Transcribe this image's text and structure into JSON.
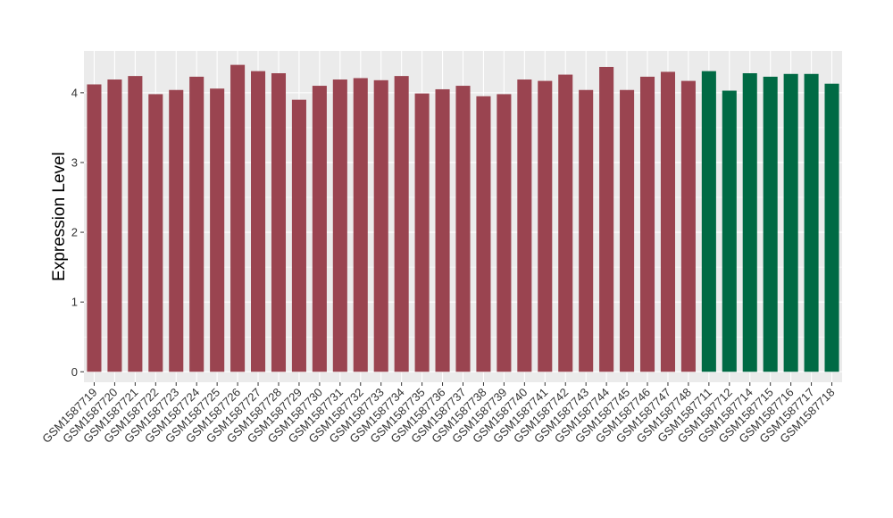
{
  "chart_data": {
    "type": "bar",
    "title": "",
    "xlabel": "",
    "ylabel": "Expression Level",
    "ylim": [
      -0.15,
      4.6
    ],
    "yticks": [
      0,
      1,
      2,
      3,
      4
    ],
    "grid": true,
    "legend": "none",
    "background": "#ebebeb",
    "gridline_color": "#ffffff",
    "group_colors": [
      "#9a4450",
      "#006a44"
    ],
    "categories": [
      "GSM1587719",
      "GSM1587720",
      "GSM1587721",
      "GSM1587722",
      "GSM1587723",
      "GSM1587724",
      "GSM1587725",
      "GSM1587726",
      "GSM1587727",
      "GSM1587728",
      "GSM1587729",
      "GSM1587730",
      "GSM1587731",
      "GSM1587732",
      "GSM1587733",
      "GSM1587734",
      "GSM1587735",
      "GSM1587736",
      "GSM1587737",
      "GSM1587738",
      "GSM1587739",
      "GSM1587740",
      "GSM1587741",
      "GSM1587742",
      "GSM1587743",
      "GSM1587744",
      "GSM1587745",
      "GSM1587746",
      "GSM1587747",
      "GSM1587748",
      "GSM1587711",
      "GSM1587712",
      "GSM1587714",
      "GSM1587715",
      "GSM1587716",
      "GSM1587717",
      "GSM1587718"
    ],
    "values": [
      4.12,
      4.19,
      4.24,
      3.98,
      4.04,
      4.23,
      4.06,
      4.4,
      4.31,
      4.28,
      3.9,
      4.1,
      4.19,
      4.21,
      4.18,
      4.24,
      3.99,
      4.05,
      4.1,
      3.95,
      3.98,
      4.19,
      4.17,
      4.26,
      4.04,
      4.37,
      4.04,
      4.23,
      4.3,
      4.17,
      4.31,
      4.03,
      4.28,
      4.23,
      4.27,
      4.27,
      4.13
    ],
    "groups": [
      0,
      0,
      0,
      0,
      0,
      0,
      0,
      0,
      0,
      0,
      0,
      0,
      0,
      0,
      0,
      0,
      0,
      0,
      0,
      0,
      0,
      0,
      0,
      0,
      0,
      0,
      0,
      0,
      0,
      0,
      1,
      1,
      1,
      1,
      1,
      1,
      1
    ]
  }
}
